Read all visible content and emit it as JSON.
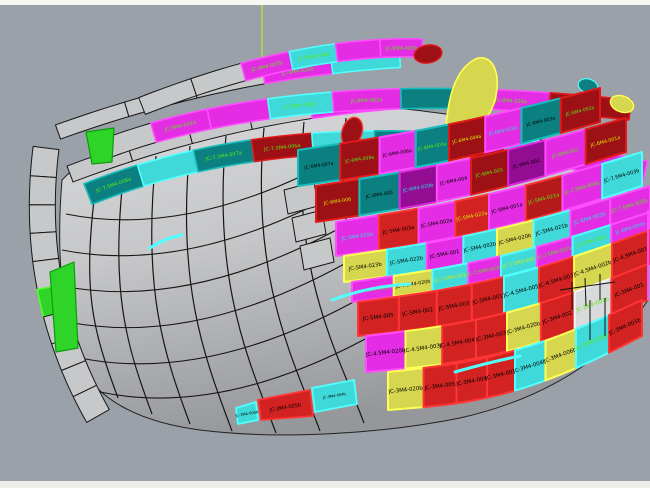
{
  "scene": {
    "background": "#9ba1a9",
    "border_top_color": "#f7f7f4",
    "border_bottom_color": "#efede9",
    "axis_line_color": "#b2e62e",
    "hull_light": "#d8d9db",
    "hull_mid": "#c2c3c5",
    "hull_dark": "#95979a",
    "wire_color": "#161616"
  },
  "palette": {
    "fills": {
      "red": "#d32222",
      "darkred": "#9c1016",
      "crimson": "#b51a1a",
      "magenta": "#e32ce3",
      "purple": "#930d93",
      "cyan": "#3fd9d9",
      "teal": "#0c8080",
      "yellow": "#d6d64f",
      "green": "#2ed427",
      "gray": "#c7c8ca",
      "silver": "#d9dadb",
      "white": "#e6e6e6"
    },
    "outlines": {
      "red": "#ff3434",
      "darkred": "#e01a1a",
      "crimson": "#ff3434",
      "magenta": "#ff4cff",
      "purple": "#e026e0",
      "cyan": "#52ffff",
      "teal": "#16bdbd",
      "yellow": "#ffff55",
      "green": "#54ff2e",
      "gray": "#161616",
      "silver": "#f5f5f5",
      "white": "#ffffff"
    },
    "text_colors": {
      "black": "#000000",
      "green": "#5ae814",
      "yellow": "#d8e800",
      "cyan": "#28e0e0"
    }
  },
  "deck_bands": [
    {
      "name": "shell-strake-left",
      "segments": [
        {
          "f": "gray"
        },
        {
          "f": "gray"
        },
        {
          "f": "gray"
        },
        {
          "f": "gray"
        },
        {
          "f": "gray"
        },
        {
          "f": "green"
        },
        {
          "f": "gray"
        },
        {
          "f": "gray"
        },
        {
          "f": "gray"
        },
        {
          "f": "gray"
        }
      ]
    },
    {
      "name": "deck-edge-lower",
      "segments": [
        {
          "f": "gray"
        },
        {
          "f": "gray"
        },
        {
          "f": "gray"
        },
        {
          "f": "gray"
        },
        {
          "f": "magenta"
        },
        {
          "f": "magenta",
          "l": "JC-9M4-021b",
          "t": "green"
        }
      ]
    },
    {
      "name": "deck-edge-upper",
      "segments": [
        {
          "f": "gray"
        },
        {
          "f": "gray"
        },
        {
          "f": "gray"
        },
        {
          "f": "magenta",
          "l": "JC-9M4-020b",
          "t": "green"
        },
        {
          "f": "cyan"
        }
      ]
    },
    {
      "name": "deck-strip-3",
      "segments": [
        {
          "f": "teal",
          "l": "JC-7.5M4-008a",
          "t": "green"
        },
        {
          "f": "cyan"
        },
        {
          "f": "teal",
          "l": "JC-7.5M4-007a",
          "t": "green"
        },
        {
          "f": "darkred",
          "l": "JC-7.5M4-006a",
          "t": "green"
        },
        {
          "f": "cyan"
        },
        {
          "f": "teal",
          "l": "JC-7.5M4-005a",
          "t": "green"
        },
        {
          "f": "darkred",
          "l": "JC-7.5M4-020a",
          "t": "green"
        },
        {
          "f": "cyan"
        },
        {
          "f": "magenta"
        }
      ]
    },
    {
      "name": "deck-strip-2",
      "segments": [
        {
          "f": "gray"
        },
        {
          "f": "magenta",
          "l": "JC-9M4-001b",
          "t": "green"
        },
        {
          "f": "magenta"
        },
        {
          "f": "cyan",
          "l": "JC-9M4-022b",
          "t": "green"
        },
        {
          "f": "magenta",
          "l": "JC-9M4-002a",
          "t": "green"
        },
        {
          "f": "teal"
        },
        {
          "f": "magenta",
          "l": "JC-9M4-020a",
          "t": "green"
        },
        {
          "f": "darkred"
        }
      ]
    },
    {
      "name": "deck-strip-1",
      "segments": [
        {
          "f": "gray"
        },
        {
          "f": "gray"
        },
        {
          "f": "magenta",
          "l": "JC-9M4-003b",
          "t": "green"
        },
        {
          "f": "cyan",
          "l": "JC-9M4-004b",
          "t": "green"
        },
        {
          "f": "magenta"
        },
        {
          "f": "magenta",
          "l": "JC-9M4-002b",
          "t": "green"
        }
      ]
    }
  ],
  "plate_rows": [
    {
      "name": "row-6M4-deck",
      "cells": [
        {
          "f": "teal",
          "t": "black",
          "l": "JC-6M4-007a"
        },
        {
          "f": "darkred",
          "t": "green",
          "l": "JC-6M4-008a"
        },
        {
          "f": "magenta",
          "t": "black",
          "l": "JC-6M4-006a"
        },
        {
          "f": "teal",
          "t": "green",
          "l": "JC-6M4-005a"
        },
        {
          "f": "darkred",
          "t": "yellow",
          "l": "JC-6M4-004a"
        },
        {
          "f": "magenta",
          "t": "cyan",
          "l": "JC-6M4-020a"
        },
        {
          "f": "teal",
          "t": "black",
          "l": "JC-6M4-003a"
        },
        {
          "f": "darkred",
          "t": "green",
          "l": "JC-6M4-002a"
        }
      ]
    },
    {
      "name": "row-6M4",
      "cells": [
        {
          "f": "darkred",
          "t": "yellow",
          "l": "JC-6M4-006"
        },
        {
          "f": "teal",
          "t": "black",
          "l": "JC-6M4-005"
        },
        {
          "f": "purple",
          "t": "cyan",
          "l": "JC-6M4-020b"
        },
        {
          "f": "magenta",
          "t": "black",
          "l": "JC-6M4-004"
        },
        {
          "f": "darkred",
          "t": "green",
          "l": "JC-6M4-003"
        },
        {
          "f": "purple",
          "t": "black",
          "l": "JC-6M4-002"
        },
        {
          "f": "magenta",
          "t": "green",
          "l": "JC-6M4-001"
        },
        {
          "f": "darkred",
          "t": "yellow",
          "l": "JC-6M4-001a"
        }
      ]
    },
    {
      "name": "row-5M4a",
      "cells": [
        {
          "f": "magenta",
          "t": "cyan",
          "l": "JC-5M4-020a"
        },
        {
          "f": "red",
          "t": "black",
          "l": "JC-5M4-003a"
        },
        {
          "f": "magenta",
          "t": "black",
          "l": "JC-5M4-002a"
        },
        {
          "f": "red",
          "t": "yellow",
          "l": "JC-5M4-022a"
        },
        {
          "f": "magenta",
          "t": "black",
          "l": "JC-5M4-001a"
        },
        {
          "f": "crimson",
          "t": "green",
          "l": "JC-5M4-021a"
        },
        {
          "f": "magenta",
          "t": "green",
          "l": "JC-7.5M4-004b"
        },
        {
          "f": "cyan",
          "t": "black",
          "l": "JC-7.5M4-003b"
        }
      ]
    },
    {
      "name": "row-5M4b",
      "cells": [
        {
          "f": "yellow",
          "t": "black",
          "l": "JC-5M4-023b"
        },
        {
          "f": "cyan",
          "t": "black",
          "l": "JC-5M4-022b"
        },
        {
          "f": "magenta",
          "t": "black",
          "l": "JC-5M4-001"
        },
        {
          "f": "cyan",
          "t": "black",
          "l": "JC-5M4-002b"
        },
        {
          "f": "yellow",
          "t": "black",
          "l": "JC-5M4-020b"
        },
        {
          "f": "cyan",
          "t": "black",
          "l": "JC-5M4-021b"
        },
        {
          "f": "magenta",
          "t": "cyan",
          "l": "JC-6M4-003b"
        },
        {
          "f": "magenta",
          "t": "green",
          "l": "JC-7.5M4-005b"
        }
      ]
    },
    {
      "name": "row-7.5M4",
      "cells": [
        {
          "f": "magenta",
          "t": "green",
          "l": "JC-7.5M4-002b"
        },
        {
          "f": "yellow",
          "t": "black",
          "l": "JC-7.5M4-020b"
        },
        {
          "f": "cyan",
          "t": "yellow",
          "l": "JC-7.5M4-001"
        },
        {
          "f": "magenta",
          "t": "green",
          "l": "JC-7.5M4-003b"
        },
        {
          "f": "cyan",
          "t": "yellow",
          "l": "JC-7.5M4-004"
        },
        {
          "f": "magenta",
          "t": "green",
          "l": "JC-7.5M4-002a"
        },
        {
          "f": "cyan",
          "t": "green",
          "l": "JC-6M4-002b"
        },
        {
          "f": "magenta",
          "t": "cyan",
          "l": "JC-6M4-004b"
        }
      ]
    },
    {
      "name": "row-5M4-lower",
      "cells": [
        {
          "f": "red",
          "t": "black",
          "l": "JC-5M4-005"
        },
        {
          "f": "red",
          "t": "black",
          "l": "JC-5M4-002"
        },
        {
          "f": "red",
          "t": "black",
          "l": "JC-5M4-003"
        },
        {
          "f": "red",
          "t": "black",
          "l": "JC-5M4-001"
        },
        {
          "f": "cyan",
          "t": "black",
          "l": "JC-4.5M4-005"
        },
        {
          "f": "red",
          "t": "black",
          "l": "JC-4.5M4-003"
        },
        {
          "f": "yellow",
          "t": "black",
          "l": "JC-4.5M4-002b"
        },
        {
          "f": "red",
          "t": "black",
          "l": "JC-4.5M4-001"
        }
      ]
    },
    {
      "name": "row-4.5M4",
      "cells": [
        {
          "f": "magenta",
          "t": "black",
          "l": "JC-4.5M4-020b"
        },
        {
          "f": "yellow",
          "t": "black",
          "l": "JC-4.5M4-003b"
        },
        {
          "f": "red",
          "t": "black",
          "l": "JC-4.5M4-004b"
        },
        {
          "f": "red",
          "t": "black",
          "l": "JC-3M4-003"
        },
        {
          "f": "yellow",
          "t": "black",
          "l": "JC-3M4-020b"
        },
        {
          "f": "red",
          "t": "black",
          "l": "JC-3M4-002"
        },
        {
          "f": "silver",
          "t": "green",
          "l": "JC-3M4-002b"
        },
        {
          "f": "red",
          "t": "black",
          "l": "JC-3M4-001"
        }
      ]
    },
    {
      "name": "row-3M4",
      "cells": [
        {
          "f": "yellow",
          "t": "black",
          "l": "JC-3M4-020b"
        },
        {
          "f": "red",
          "t": "black",
          "l": "JC-3M4-005"
        },
        {
          "f": "red",
          "t": "black",
          "l": "JC-3M4-004"
        },
        {
          "f": "red",
          "t": "black",
          "l": "JC-3M4-003"
        },
        {
          "f": "cyan",
          "t": "black",
          "l": "JC-3M4-004b"
        },
        {
          "f": "yellow",
          "t": "black",
          "l": "JC-3M4-006b"
        },
        {
          "f": "cyan",
          "t": "green",
          "l": "JC-3M4-002a"
        },
        {
          "f": "red",
          "t": "black",
          "l": "JC-3M4-001b"
        }
      ]
    }
  ],
  "bottom_plates": [
    {
      "f": "cyan",
      "t": "black",
      "l": "JC-3M4-006b"
    },
    {
      "f": "red",
      "t": "black",
      "l": "JC-3M4-005b"
    },
    {
      "f": "cyan",
      "t": "black",
      "l": "JC-3M4-004b"
    }
  ],
  "highlight_panels": [
    {
      "f": "green",
      "name": "highlight-panel-upper"
    },
    {
      "f": "green",
      "name": "highlight-panel-lower"
    }
  ]
}
